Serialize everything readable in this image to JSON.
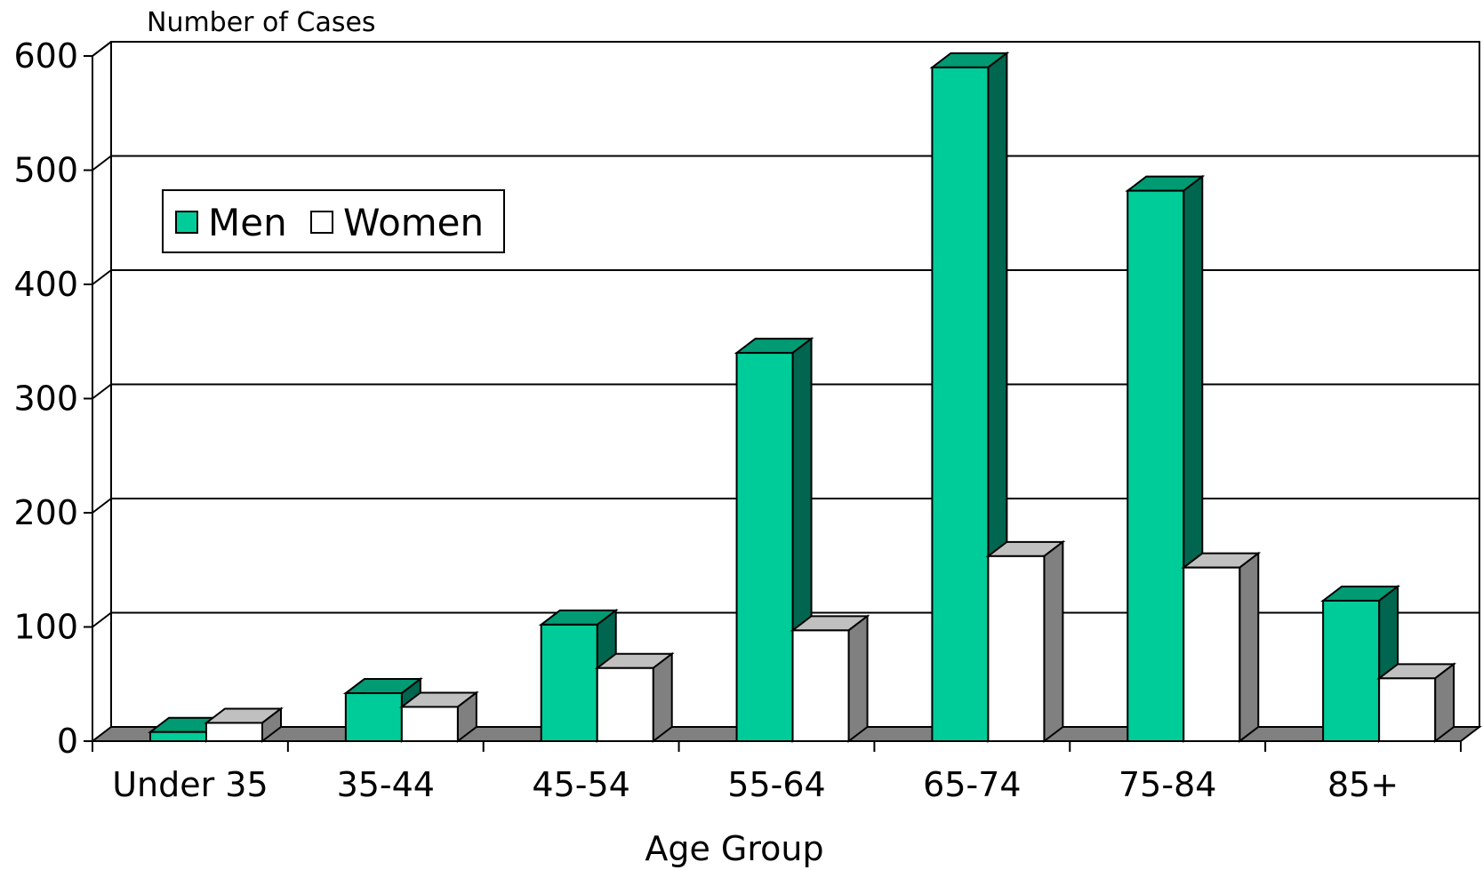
{
  "chart_data": {
    "type": "bar",
    "title": "",
    "ylabel": "Number of Cases",
    "xlabel": "Age Group",
    "ylim": [
      0,
      600
    ],
    "yticks": [
      0,
      100,
      200,
      300,
      400,
      500,
      600
    ],
    "grid": true,
    "legend_position": "top-left",
    "style": "3d",
    "categories": [
      "Under 35",
      "35-44",
      "45-54",
      "55-64",
      "65-74",
      "75-84",
      "85+"
    ],
    "series": [
      {
        "name": "Men",
        "values": [
          8,
          42,
          102,
          340,
          590,
          482,
          123
        ]
      },
      {
        "name": "Women",
        "values": [
          16,
          30,
          64,
          97,
          162,
          152,
          55
        ]
      }
    ],
    "colors": {
      "men_front": "#00cc99",
      "men_side": "#006650",
      "men_top": "#009a73",
      "women_front": "#ffffff",
      "women_side": "#808080",
      "women_top": "#c0c0c0",
      "floor": "#808080",
      "grid": "#000000"
    }
  }
}
